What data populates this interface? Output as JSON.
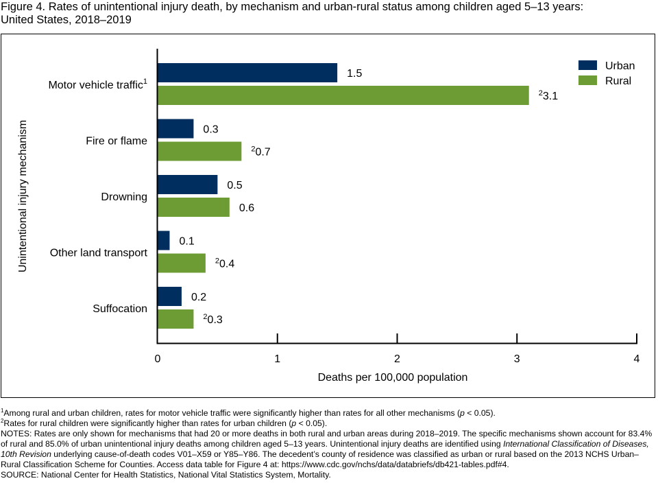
{
  "title": {
    "line1": "Figure 4. Rates of unintentional injury death, by mechanism and urban-rural status among children aged 5–13 years:",
    "line2": "United States, 2018–2019"
  },
  "colors": {
    "urban": "#002e5e",
    "rural": "#6e9c34"
  },
  "chart_data": {
    "type": "bar",
    "orientation": "horizontal",
    "title": "Rates of unintentional injury death, by mechanism and urban-rural status among children aged 5–13 years: United States, 2018–2019",
    "xlabel": "Deaths per 100,000 population",
    "ylabel": "Unintentional injury mechanism",
    "xlim": [
      0,
      4
    ],
    "xticks": [
      0,
      1,
      2,
      3,
      4
    ],
    "grid": false,
    "legend_position": "top-right",
    "categories": [
      "Motor vehicle traffic",
      "Fire or flame",
      "Drowning",
      "Other land transport",
      "Suffocation"
    ],
    "category_footnotes": [
      "1",
      "",
      "",
      "",
      ""
    ],
    "series": [
      {
        "name": "Urban",
        "values": [
          1.5,
          0.3,
          0.5,
          0.1,
          0.2
        ],
        "labels": [
          "1.5",
          "0.3",
          "0.5",
          "0.1",
          "0.2"
        ],
        "label_footnotes": [
          "",
          "",
          "",
          "",
          ""
        ]
      },
      {
        "name": "Rural",
        "values": [
          3.1,
          0.7,
          0.6,
          0.4,
          0.3
        ],
        "labels": [
          "3.1",
          "0.7",
          "0.6",
          "0.4",
          "0.3"
        ],
        "label_footnotes": [
          "2",
          "2",
          "",
          "2",
          "2"
        ]
      }
    ]
  },
  "footnotes": {
    "fn1_mark": "1",
    "fn1_text_a": "Among rural and urban children, rates for motor vehicle traffic were significantly higher than rates for all other mechanisms (",
    "fn1_p": "p",
    "fn1_text_b": " < 0.05).",
    "fn2_mark": "2",
    "fn2_text_a": "Rates for rural children were significantly higher than rates for urban children (",
    "fn2_p": "p",
    "fn2_text_b": " < 0.05).",
    "notes_a": "NOTES: Rates are only shown for mechanisms that had 20 or more deaths in both rural and urban areas during 2018–2019. The specific mechanisms shown account for 83.4% of rural and 85.0% of urban unintentional injury deaths among children aged 5–13 years. Unintentional injury deaths are identified using ",
    "notes_italic": "International Classification of Diseases, 10th Revision",
    "notes_b": " underlying cause-of-death codes V01–X59 or Y85–Y86. The decedent’s county of residence was classified as urban or rural based on the 2013 NCHS Urban–Rural Classification Scheme for Counties. Access data table for Figure 4 at: https://www.cdc.gov/nchs/data/databriefs/db421-tables.pdf#4.",
    "source": "SOURCE: National Center for Health Statistics, National Vital Statistics System, Mortality."
  }
}
